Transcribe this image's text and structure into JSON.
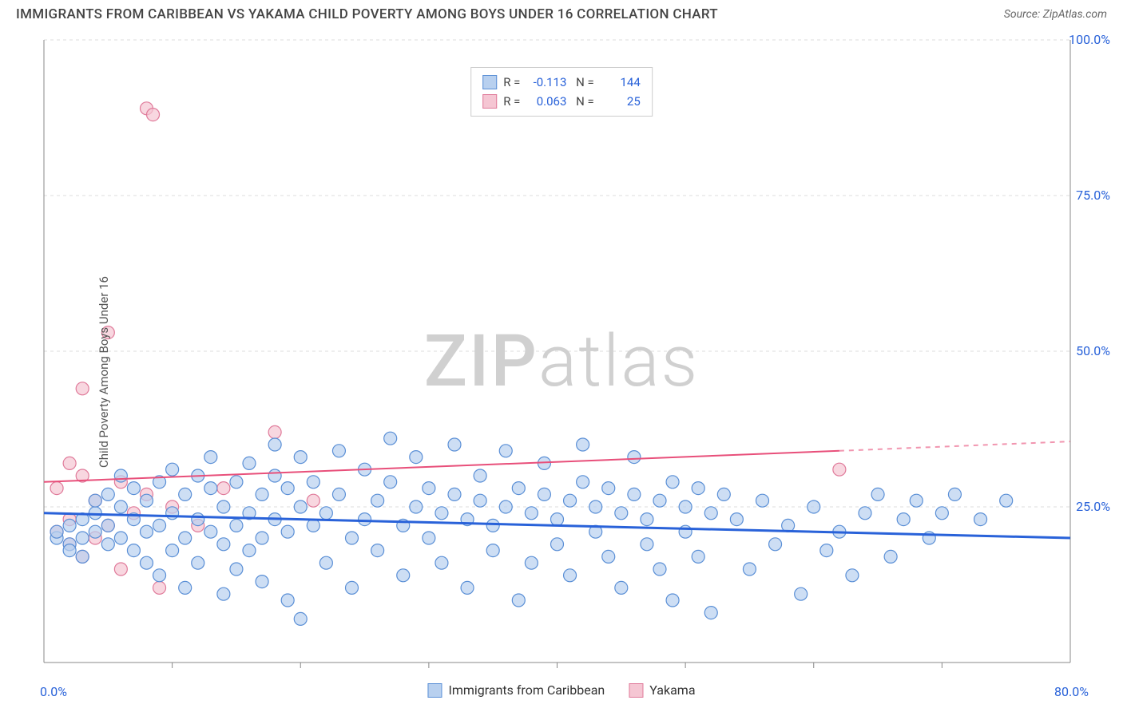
{
  "title": "IMMIGRANTS FROM CARIBBEAN VS YAKAMA CHILD POVERTY AMONG BOYS UNDER 16 CORRELATION CHART",
  "source_label": "Source:",
  "source_name": "ZipAtlas.com",
  "ylabel": "Child Poverty Among Boys Under 16",
  "watermark_a": "ZIP",
  "watermark_b": "atlas",
  "watermark_color": "#d0d0d0",
  "chart": {
    "type": "scatter",
    "xlim": [
      0,
      80
    ],
    "ylim": [
      0,
      100
    ],
    "x0_label": "0.0%",
    "x1_label": "80.0%",
    "ytick_labels": [
      "25.0%",
      "50.0%",
      "75.0%",
      "100.0%"
    ],
    "ytick_vals": [
      25,
      50,
      75,
      100
    ],
    "xtick_vals": [
      10,
      20,
      30,
      40,
      50,
      60,
      70
    ],
    "grid_color": "#dddddd",
    "axis_color": "#888888",
    "plot_bg": "#ffffff",
    "ylabel_color": "#2962d9",
    "xlabel_color": "#2962d9",
    "marker_radius": 8,
    "series": [
      {
        "name": "Immigrants from Caribbean",
        "fill": "#b8d0ef",
        "stroke": "#5a8fd6",
        "line_color": "#2962d9",
        "line_width": 3,
        "R": "-0.113",
        "N": "144",
        "trend": {
          "x1": 0,
          "y1": 24,
          "x2": 80,
          "y2": 20
        },
        "points": [
          [
            1,
            20
          ],
          [
            1,
            21
          ],
          [
            2,
            19
          ],
          [
            2,
            22
          ],
          [
            2,
            18
          ],
          [
            3,
            20
          ],
          [
            3,
            23
          ],
          [
            3,
            17
          ],
          [
            4,
            21
          ],
          [
            4,
            24
          ],
          [
            4,
            26
          ],
          [
            5,
            19
          ],
          [
            5,
            22
          ],
          [
            5,
            27
          ],
          [
            6,
            20
          ],
          [
            6,
            25
          ],
          [
            6,
            30
          ],
          [
            7,
            18
          ],
          [
            7,
            23
          ],
          [
            7,
            28
          ],
          [
            8,
            21
          ],
          [
            8,
            26
          ],
          [
            8,
            16
          ],
          [
            9,
            22
          ],
          [
            9,
            29
          ],
          [
            9,
            14
          ],
          [
            10,
            24
          ],
          [
            10,
            31
          ],
          [
            10,
            18
          ],
          [
            11,
            20
          ],
          [
            11,
            27
          ],
          [
            11,
            12
          ],
          [
            12,
            23
          ],
          [
            12,
            30
          ],
          [
            12,
            16
          ],
          [
            13,
            21
          ],
          [
            13,
            28
          ],
          [
            13,
            33
          ],
          [
            14,
            19
          ],
          [
            14,
            25
          ],
          [
            14,
            11
          ],
          [
            15,
            22
          ],
          [
            15,
            29
          ],
          [
            15,
            15
          ],
          [
            16,
            24
          ],
          [
            16,
            32
          ],
          [
            16,
            18
          ],
          [
            17,
            20
          ],
          [
            17,
            27
          ],
          [
            17,
            13
          ],
          [
            18,
            23
          ],
          [
            18,
            30
          ],
          [
            18,
            35
          ],
          [
            19,
            21
          ],
          [
            19,
            28
          ],
          [
            19,
            10
          ],
          [
            20,
            25
          ],
          [
            20,
            33
          ],
          [
            20,
            7
          ],
          [
            21,
            22
          ],
          [
            21,
            29
          ],
          [
            22,
            24
          ],
          [
            22,
            16
          ],
          [
            23,
            27
          ],
          [
            23,
            34
          ],
          [
            24,
            20
          ],
          [
            24,
            12
          ],
          [
            25,
            23
          ],
          [
            25,
            31
          ],
          [
            26,
            26
          ],
          [
            26,
            18
          ],
          [
            27,
            29
          ],
          [
            27,
            36
          ],
          [
            28,
            22
          ],
          [
            28,
            14
          ],
          [
            29,
            25
          ],
          [
            29,
            33
          ],
          [
            30,
            28
          ],
          [
            30,
            20
          ],
          [
            31,
            24
          ],
          [
            31,
            16
          ],
          [
            32,
            27
          ],
          [
            32,
            35
          ],
          [
            33,
            23
          ],
          [
            33,
            12
          ],
          [
            34,
            26
          ],
          [
            34,
            30
          ],
          [
            35,
            22
          ],
          [
            35,
            18
          ],
          [
            36,
            25
          ],
          [
            36,
            34
          ],
          [
            37,
            28
          ],
          [
            37,
            10
          ],
          [
            38,
            24
          ],
          [
            38,
            16
          ],
          [
            39,
            27
          ],
          [
            39,
            32
          ],
          [
            40,
            23
          ],
          [
            40,
            19
          ],
          [
            41,
            26
          ],
          [
            41,
            14
          ],
          [
            42,
            29
          ],
          [
            42,
            35
          ],
          [
            43,
            25
          ],
          [
            43,
            21
          ],
          [
            44,
            28
          ],
          [
            44,
            17
          ],
          [
            45,
            24
          ],
          [
            45,
            12
          ],
          [
            46,
            27
          ],
          [
            46,
            33
          ],
          [
            47,
            23
          ],
          [
            47,
            19
          ],
          [
            48,
            26
          ],
          [
            48,
            15
          ],
          [
            49,
            29
          ],
          [
            49,
            10
          ],
          [
            50,
            25
          ],
          [
            50,
            21
          ],
          [
            51,
            28
          ],
          [
            51,
            17
          ],
          [
            52,
            24
          ],
          [
            52,
            8
          ],
          [
            53,
            27
          ],
          [
            54,
            23
          ],
          [
            55,
            15
          ],
          [
            56,
            26
          ],
          [
            57,
            19
          ],
          [
            58,
            22
          ],
          [
            59,
            11
          ],
          [
            60,
            25
          ],
          [
            61,
            18
          ],
          [
            62,
            21
          ],
          [
            63,
            14
          ],
          [
            64,
            24
          ],
          [
            65,
            27
          ],
          [
            66,
            17
          ],
          [
            67,
            23
          ],
          [
            68,
            26
          ],
          [
            69,
            20
          ],
          [
            70,
            24
          ],
          [
            71,
            27
          ],
          [
            73,
            23
          ],
          [
            75,
            26
          ]
        ]
      },
      {
        "name": "Yakama",
        "fill": "#f5c6d3",
        "stroke": "#e07a9a",
        "line_color": "#e84f7a",
        "line_width": 2,
        "R": "0.063",
        "N": "25",
        "trend": {
          "x1": 0,
          "y1": 29,
          "x2": 62,
          "y2": 34
        },
        "trend_ext": {
          "x1": 62,
          "y1": 34,
          "x2": 80,
          "y2": 35.5
        },
        "points": [
          [
            1,
            21
          ],
          [
            1,
            28
          ],
          [
            2,
            19
          ],
          [
            2,
            32
          ],
          [
            2,
            23
          ],
          [
            3,
            30
          ],
          [
            3,
            17
          ],
          [
            3,
            44
          ],
          [
            4,
            26
          ],
          [
            4,
            20
          ],
          [
            5,
            22
          ],
          [
            5,
            53
          ],
          [
            6,
            29
          ],
          [
            6,
            15
          ],
          [
            7,
            24
          ],
          [
            8,
            27
          ],
          [
            8,
            89
          ],
          [
            8.5,
            88
          ],
          [
            9,
            12
          ],
          [
            10,
            25
          ],
          [
            12,
            22
          ],
          [
            14,
            28
          ],
          [
            18,
            37
          ],
          [
            21,
            26
          ],
          [
            62,
            31
          ]
        ]
      }
    ]
  },
  "legend_bottom": [
    {
      "label": "Immigrants from Caribbean",
      "fill": "#b8d0ef",
      "stroke": "#5a8fd6"
    },
    {
      "label": "Yakama",
      "fill": "#f5c6d3",
      "stroke": "#e07a9a"
    }
  ]
}
